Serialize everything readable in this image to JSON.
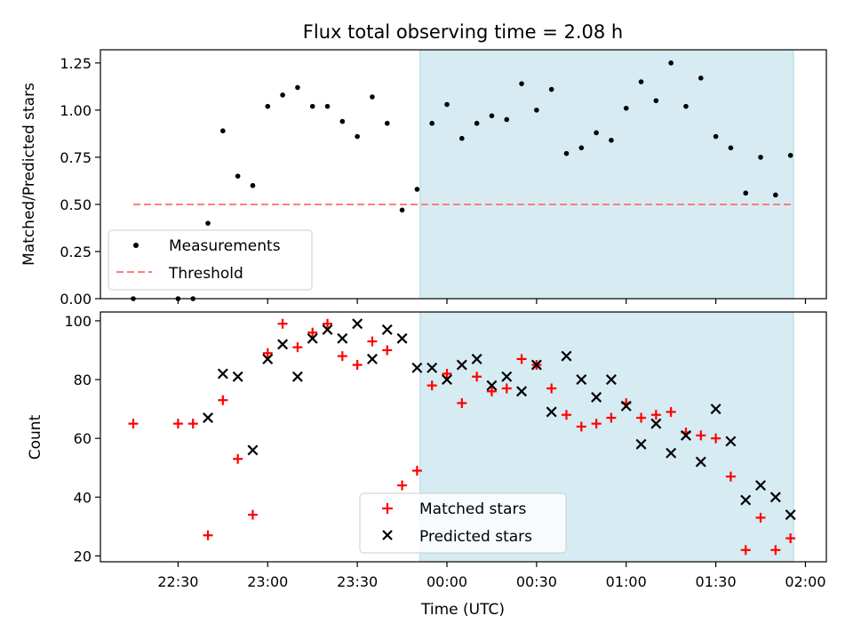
{
  "title": "Flux total observing time = 2.08 h",
  "colors": {
    "measurement": "#000000",
    "threshold": "#ff7f7f",
    "window_fill": "#add8e6",
    "matched": "#ff0000",
    "predicted": "#000000"
  },
  "chart_data": [
    {
      "type": "scatter",
      "name": "ratio-panel",
      "ylabel": "Matched/Predicted stars",
      "ylim": [
        0,
        1.32
      ],
      "yticks": [
        "0.00",
        "0.25",
        "0.50",
        "0.75",
        "1.00",
        "1.25"
      ],
      "xlim": [
        "22:04",
        "02:07"
      ],
      "shaded_interval": [
        "23:51",
        "01:56"
      ],
      "legend": {
        "placement": "lower-left",
        "entries": [
          {
            "label": "Measurements",
            "marker": "dot"
          },
          {
            "label": "Threshold",
            "marker": "dashed-line"
          }
        ]
      },
      "threshold": {
        "y": 0.5,
        "x": [
          "22:15",
          "01:56"
        ]
      },
      "series": [
        {
          "x": [
            "22:15",
            "22:30",
            "22:35",
            "22:40",
            "22:45",
            "22:50",
            "22:55",
            "23:00",
            "23:05",
            "23:10",
            "23:15",
            "23:20",
            "23:25",
            "23:30",
            "23:35",
            "23:40",
            "23:45",
            "23:50",
            "23:55",
            "00:00",
            "00:05",
            "00:10",
            "00:15",
            "00:20",
            "00:25",
            "00:30",
            "00:35",
            "00:40",
            "00:45",
            "00:50",
            "00:55",
            "01:00",
            "01:05",
            "01:10",
            "01:15",
            "01:20",
            "01:25",
            "01:30",
            "01:35",
            "01:40",
            "01:45",
            "01:50",
            "01:55"
          ],
          "y": [
            0.0,
            0.0,
            0.0,
            0.4,
            0.89,
            0.65,
            0.6,
            1.02,
            1.08,
            1.12,
            1.02,
            1.02,
            0.94,
            0.86,
            1.07,
            0.93,
            0.47,
            0.58,
            0.93,
            1.03,
            0.85,
            0.93,
            0.97,
            0.95,
            1.14,
            1.0,
            1.11,
            0.77,
            0.8,
            0.88,
            0.84,
            1.01,
            1.15,
            1.05,
            1.25,
            1.02,
            1.17,
            0.86,
            0.8,
            0.56,
            0.75,
            0.55,
            0.76
          ]
        }
      ]
    },
    {
      "type": "scatter",
      "name": "count-panel",
      "xlabel": "Time (UTC)",
      "ylabel": "Count",
      "ylim": [
        18,
        103
      ],
      "yticks": [
        "20",
        "40",
        "60",
        "80",
        "100"
      ],
      "xlim": [
        "22:04",
        "02:07"
      ],
      "xticks": [
        "22:30",
        "23:00",
        "23:30",
        "00:00",
        "00:30",
        "01:00",
        "01:30",
        "02:00"
      ],
      "shaded_interval": [
        "23:51",
        "01:56"
      ],
      "legend": {
        "placement": "lower-center",
        "entries": [
          {
            "label": "Matched stars",
            "marker": "plus"
          },
          {
            "label": "Predicted stars",
            "marker": "x"
          }
        ]
      },
      "series": [
        {
          "name": "Matched stars",
          "x": [
            "22:15",
            "22:30",
            "22:35",
            "22:40",
            "22:45",
            "22:50",
            "22:55",
            "23:00",
            "23:05",
            "23:10",
            "23:15",
            "23:20",
            "23:25",
            "23:30",
            "23:35",
            "23:40",
            "23:45",
            "23:50",
            "23:55",
            "00:00",
            "00:05",
            "00:10",
            "00:15",
            "00:20",
            "00:25",
            "00:30",
            "00:35",
            "00:40",
            "00:45",
            "00:50",
            "00:55",
            "01:00",
            "01:05",
            "01:10",
            "01:15",
            "01:20",
            "01:25",
            "01:30",
            "01:35",
            "01:40",
            "01:45",
            "01:50",
            "01:55"
          ],
          "y": [
            65,
            65,
            65,
            27,
            73,
            53,
            34,
            89,
            99,
            91,
            96,
            99,
            88,
            85,
            93,
            90,
            44,
            49,
            78,
            82,
            72,
            81,
            76,
            77,
            87,
            85,
            77,
            68,
            64,
            65,
            67,
            72,
            67,
            68,
            69,
            62,
            61,
            60,
            47,
            22,
            33,
            22,
            26
          ]
        },
        {
          "name": "Predicted stars",
          "x": [
            "22:40",
            "22:45",
            "22:50",
            "22:55",
            "23:00",
            "23:05",
            "23:10",
            "23:15",
            "23:20",
            "23:25",
            "23:30",
            "23:35",
            "23:40",
            "23:45",
            "23:50",
            "23:55",
            "00:00",
            "00:05",
            "00:10",
            "00:15",
            "00:20",
            "00:25",
            "00:30",
            "00:35",
            "00:40",
            "00:45",
            "00:50",
            "00:55",
            "01:00",
            "01:05",
            "01:10",
            "01:15",
            "01:20",
            "01:25",
            "01:30",
            "01:35",
            "01:40",
            "01:45",
            "01:50",
            "01:55"
          ],
          "y": [
            67,
            82,
            81,
            56,
            87,
            92,
            81,
            94,
            97,
            94,
            99,
            87,
            97,
            94,
            84,
            84,
            80,
            85,
            87,
            78,
            81,
            76,
            85,
            69,
            88,
            80,
            74,
            80,
            71,
            58,
            65,
            55,
            61,
            52,
            70,
            59,
            39,
            44,
            40,
            34
          ]
        }
      ]
    }
  ]
}
